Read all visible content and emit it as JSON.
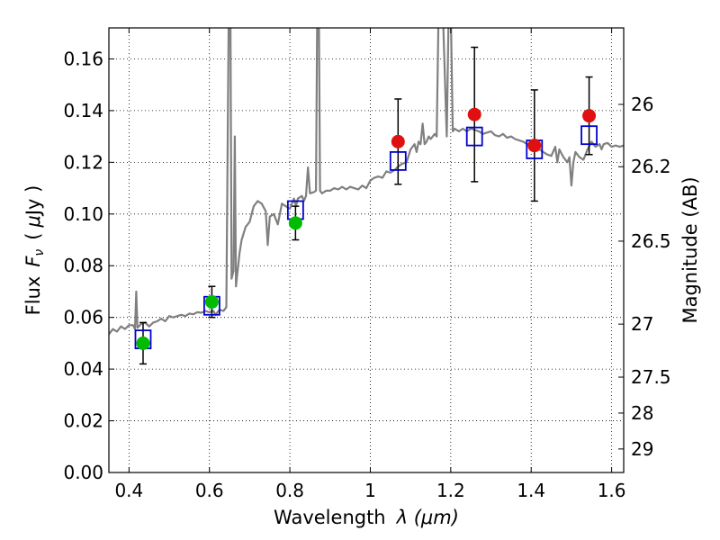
{
  "chart_data": {
    "type": "scatter",
    "title": "",
    "xlabel": "Wavelength",
    "xlabel_math": "λ (μm)",
    "ylabel": "Flux",
    "ylabel_math": "F",
    "ylabel_math_sub": "ν",
    "ylabel_unit_open": "(",
    "ylabel_unit_mu": "μ",
    "ylabel_unit": "Jy )",
    "ylabel_right": "Magnitude (AB)",
    "xlim": [
      0.35,
      1.63
    ],
    "ylim": [
      0.0,
      0.172
    ],
    "grid": true,
    "x_ticks": [
      0.4,
      0.6,
      0.8,
      1.0,
      1.2,
      1.4,
      1.6
    ],
    "x_tick_labels": [
      "0.4",
      "0.6",
      "0.8",
      "1",
      "1.2",
      "1.4",
      "1.6"
    ],
    "y_ticks": [
      0.0,
      0.02,
      0.04,
      0.06,
      0.08,
      0.1,
      0.12,
      0.14,
      0.16
    ],
    "y_tick_labels": [
      "0.00",
      "0.02",
      "0.04",
      "0.06",
      "0.08",
      "0.10",
      "0.12",
      "0.14",
      "0.16"
    ],
    "right_ticks": [
      {
        "label": "26",
        "flux": 0.1424
      },
      {
        "label": "26.2",
        "flux": 0.1183
      },
      {
        "label": "26.5",
        "flux": 0.0895
      },
      {
        "label": "27",
        "flux": 0.0574
      },
      {
        "label": "27.5",
        "flux": 0.0369
      },
      {
        "label": "28",
        "flux": 0.023
      },
      {
        "label": "29",
        "flux": 0.0091
      }
    ],
    "colors": {
      "model": "#808080",
      "box": "#0000cc",
      "green": "#00bb00",
      "red": "#e01010",
      "errorbar": "#000000"
    },
    "model_spectrum": [
      [
        0.35,
        0.0535
      ],
      [
        0.36,
        0.0555
      ],
      [
        0.37,
        0.0545
      ],
      [
        0.38,
        0.0565
      ],
      [
        0.39,
        0.0555
      ],
      [
        0.4,
        0.057
      ],
      [
        0.405,
        0.057
      ],
      [
        0.41,
        0.057
      ],
      [
        0.415,
        0.0555
      ],
      [
        0.418,
        0.07
      ],
      [
        0.421,
        0.056
      ],
      [
        0.43,
        0.0575
      ],
      [
        0.44,
        0.058
      ],
      [
        0.45,
        0.0565
      ],
      [
        0.46,
        0.058
      ],
      [
        0.47,
        0.0585
      ],
      [
        0.48,
        0.0595
      ],
      [
        0.49,
        0.0585
      ],
      [
        0.5,
        0.0605
      ],
      [
        0.51,
        0.06
      ],
      [
        0.52,
        0.0605
      ],
      [
        0.53,
        0.061
      ],
      [
        0.54,
        0.0605
      ],
      [
        0.55,
        0.0615
      ],
      [
        0.56,
        0.0612
      ],
      [
        0.57,
        0.062
      ],
      [
        0.58,
        0.0618
      ],
      [
        0.59,
        0.0625
      ],
      [
        0.6,
        0.062
      ],
      [
        0.61,
        0.0625
      ],
      [
        0.615,
        0.061
      ],
      [
        0.625,
        0.063
      ],
      [
        0.635,
        0.0625
      ],
      [
        0.642,
        0.064
      ],
      [
        0.648,
        0.18
      ],
      [
        0.652,
        0.18
      ],
      [
        0.655,
        0.075
      ],
      [
        0.66,
        0.078
      ],
      [
        0.663,
        0.13
      ],
      [
        0.666,
        0.072
      ],
      [
        0.67,
        0.078
      ],
      [
        0.675,
        0.085
      ],
      [
        0.68,
        0.09
      ],
      [
        0.69,
        0.095
      ],
      [
        0.7,
        0.097
      ],
      [
        0.71,
        0.103
      ],
      [
        0.72,
        0.105
      ],
      [
        0.73,
        0.104
      ],
      [
        0.74,
        0.101
      ],
      [
        0.745,
        0.088
      ],
      [
        0.75,
        0.099
      ],
      [
        0.76,
        0.1
      ],
      [
        0.77,
        0.096
      ],
      [
        0.78,
        0.104
      ],
      [
        0.79,
        0.103
      ],
      [
        0.8,
        0.102
      ],
      [
        0.81,
        0.106
      ],
      [
        0.815,
        0.103
      ],
      [
        0.82,
        0.106
      ],
      [
        0.83,
        0.107
      ],
      [
        0.835,
        0.105
      ],
      [
        0.84,
        0.107
      ],
      [
        0.845,
        0.118
      ],
      [
        0.85,
        0.108
      ],
      [
        0.86,
        0.1085
      ],
      [
        0.865,
        0.109
      ],
      [
        0.868,
        0.18
      ],
      [
        0.872,
        0.18
      ],
      [
        0.875,
        0.109
      ],
      [
        0.88,
        0.108
      ],
      [
        0.89,
        0.109
      ],
      [
        0.9,
        0.109
      ],
      [
        0.91,
        0.11
      ],
      [
        0.92,
        0.1095
      ],
      [
        0.93,
        0.1105
      ],
      [
        0.94,
        0.1095
      ],
      [
        0.95,
        0.1105
      ],
      [
        0.96,
        0.11
      ],
      [
        0.97,
        0.1095
      ],
      [
        0.98,
        0.111
      ],
      [
        0.99,
        0.11
      ],
      [
        1.0,
        0.113
      ],
      [
        1.01,
        0.114
      ],
      [
        1.02,
        0.1145
      ],
      [
        1.03,
        0.114
      ],
      [
        1.04,
        0.1165
      ],
      [
        1.05,
        0.116
      ],
      [
        1.06,
        0.117
      ],
      [
        1.07,
        0.1185
      ],
      [
        1.08,
        0.1195
      ],
      [
        1.09,
        0.12
      ],
      [
        1.1,
        0.125
      ],
      [
        1.11,
        0.127
      ],
      [
        1.115,
        0.124
      ],
      [
        1.12,
        0.128
      ],
      [
        1.125,
        0.127
      ],
      [
        1.13,
        0.135
      ],
      [
        1.135,
        0.127
      ],
      [
        1.14,
        0.128
      ],
      [
        1.145,
        0.13
      ],
      [
        1.15,
        0.129
      ],
      [
        1.16,
        0.131
      ],
      [
        1.165,
        0.13
      ],
      [
        1.17,
        0.18
      ],
      [
        1.18,
        0.18
      ],
      [
        1.19,
        0.13
      ],
      [
        1.195,
        0.18
      ],
      [
        1.2,
        0.18
      ],
      [
        1.205,
        0.132
      ],
      [
        1.21,
        0.133
      ],
      [
        1.22,
        0.132
      ],
      [
        1.23,
        0.133
      ],
      [
        1.24,
        0.132
      ],
      [
        1.25,
        0.133
      ],
      [
        1.26,
        0.1325
      ],
      [
        1.27,
        0.132
      ],
      [
        1.28,
        0.131
      ],
      [
        1.29,
        0.1315
      ],
      [
        1.3,
        0.132
      ],
      [
        1.31,
        0.1305
      ],
      [
        1.32,
        0.13
      ],
      [
        1.33,
        0.131
      ],
      [
        1.34,
        0.1295
      ],
      [
        1.35,
        0.13
      ],
      [
        1.36,
        0.129
      ],
      [
        1.37,
        0.1285
      ],
      [
        1.38,
        0.128
      ],
      [
        1.39,
        0.127
      ],
      [
        1.4,
        0.126
      ],
      [
        1.41,
        0.1265
      ],
      [
        1.42,
        0.125
      ],
      [
        1.43,
        0.124
      ],
      [
        1.44,
        0.123
      ],
      [
        1.45,
        0.1225
      ],
      [
        1.46,
        0.126
      ],
      [
        1.465,
        0.12
      ],
      [
        1.47,
        0.125
      ],
      [
        1.48,
        0.122
      ],
      [
        1.49,
        0.12
      ],
      [
        1.495,
        0.122
      ],
      [
        1.5,
        0.111
      ],
      [
        1.505,
        0.12
      ],
      [
        1.51,
        0.124
      ],
      [
        1.52,
        0.122
      ],
      [
        1.53,
        0.121
      ],
      [
        1.54,
        0.125
      ],
      [
        1.55,
        0.128
      ],
      [
        1.56,
        0.126
      ],
      [
        1.57,
        0.127
      ],
      [
        1.575,
        0.125
      ],
      [
        1.58,
        0.127
      ],
      [
        1.59,
        0.1275
      ],
      [
        1.6,
        0.126
      ],
      [
        1.61,
        0.1265
      ],
      [
        1.62,
        0.126
      ],
      [
        1.63,
        0.1265
      ]
    ],
    "model_points": [
      {
        "x": 0.435,
        "y": 0.0515
      },
      {
        "x": 0.606,
        "y": 0.0645
      },
      {
        "x": 0.814,
        "y": 0.1015
      },
      {
        "x": 1.069,
        "y": 0.1205
      },
      {
        "x": 1.259,
        "y": 0.13
      },
      {
        "x": 1.408,
        "y": 0.125
      },
      {
        "x": 1.544,
        "y": 0.1305
      }
    ],
    "observed": [
      {
        "x": 0.435,
        "y": 0.05,
        "err": 0.008,
        "color": "green"
      },
      {
        "x": 0.606,
        "y": 0.066,
        "err": 0.006,
        "color": "green"
      },
      {
        "x": 0.814,
        "y": 0.0965,
        "err": 0.0065,
        "color": "green"
      },
      {
        "x": 1.069,
        "y": 0.128,
        "err": 0.0165,
        "color": "red"
      },
      {
        "x": 1.259,
        "y": 0.1385,
        "err": 0.026,
        "color": "red"
      },
      {
        "x": 1.408,
        "y": 0.1265,
        "err": 0.0215,
        "color": "red"
      },
      {
        "x": 1.544,
        "y": 0.138,
        "err": 0.015,
        "color": "red"
      }
    ]
  }
}
